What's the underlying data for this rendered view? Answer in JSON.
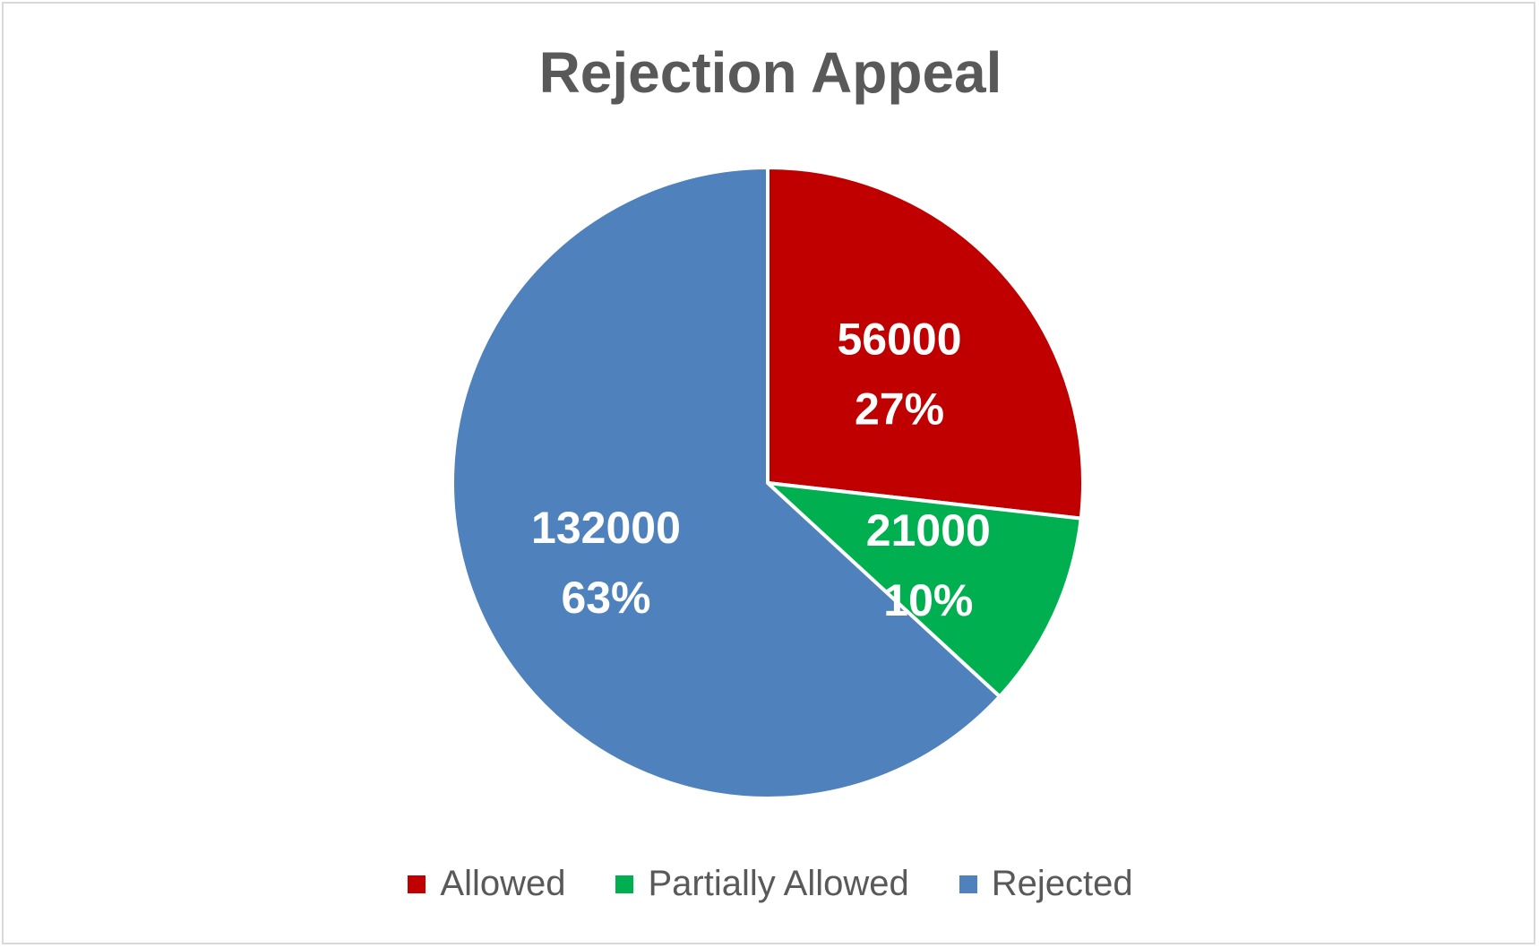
{
  "chart_data": {
    "type": "pie",
    "title": "Rejection Appeal",
    "categories": [
      "Allowed",
      "Partially Allowed",
      "Rejected"
    ],
    "values": [
      56000,
      21000,
      132000
    ],
    "percent_labels": [
      "27%",
      "10%",
      "63%"
    ],
    "value_labels": [
      "56000",
      "21000",
      "132000"
    ],
    "colors": [
      "#c00000",
      "#00b050",
      "#4f81bd"
    ],
    "legend_position": "bottom"
  }
}
